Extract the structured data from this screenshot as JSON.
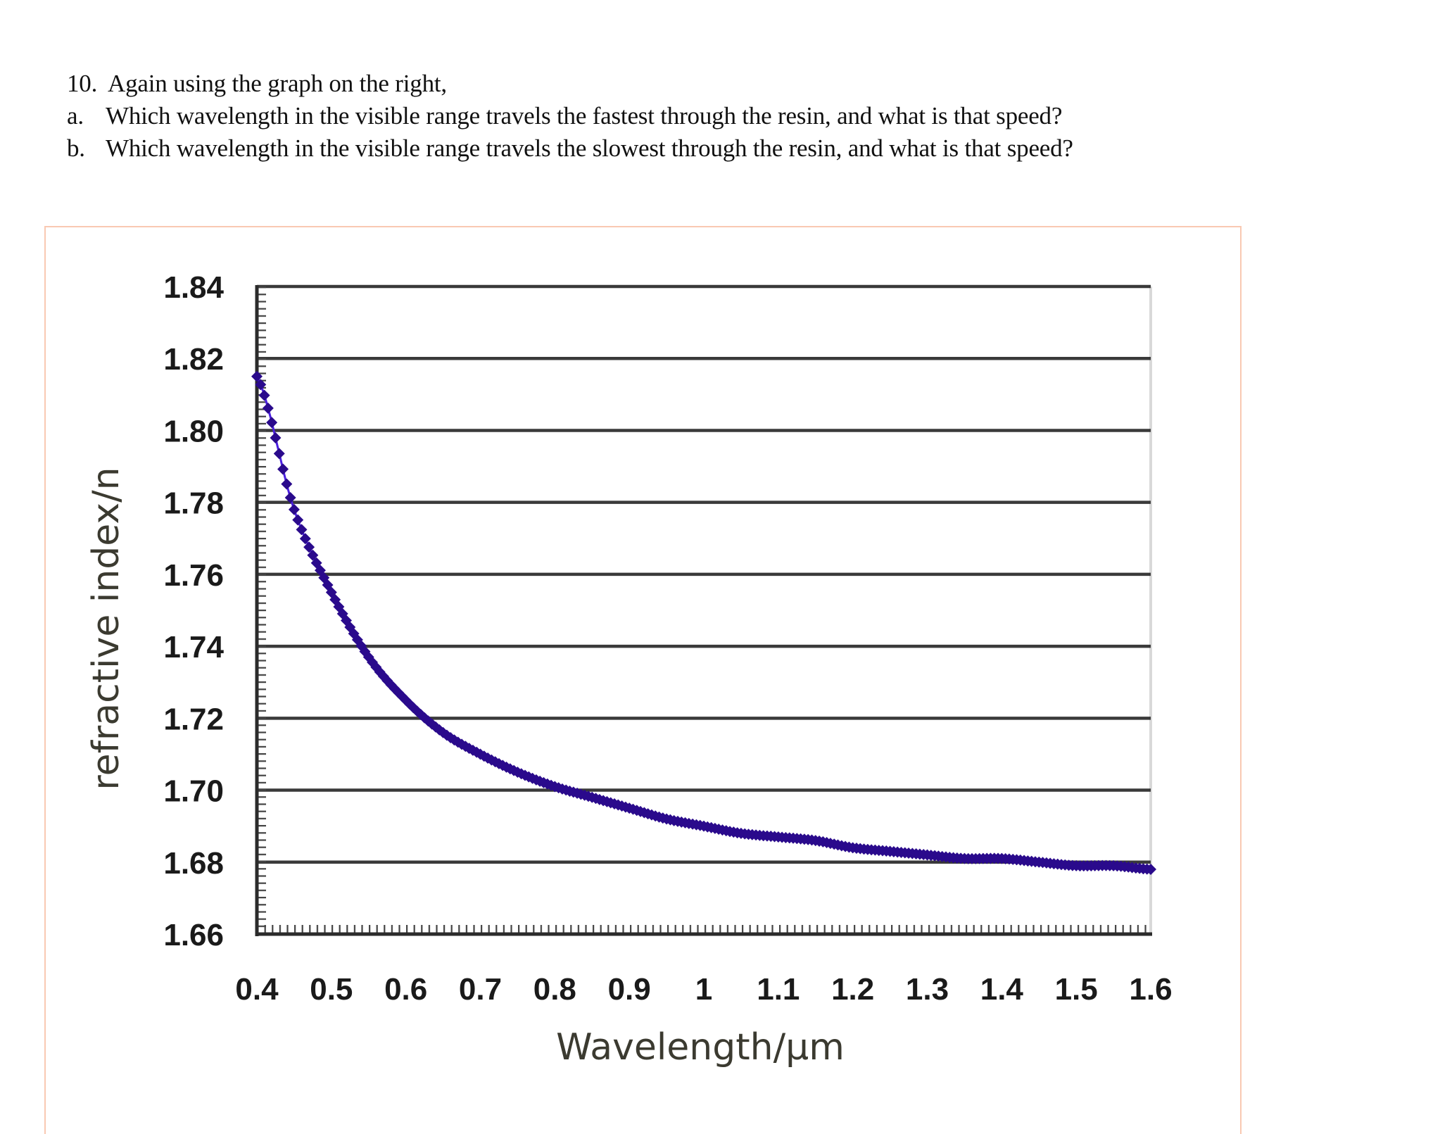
{
  "document": {
    "question": {
      "number": "10.",
      "text": "Again using the graph on the right,",
      "parts": [
        {
          "marker": "a.",
          "text": "Which wavelength in the visible range travels the fastest through the resin, and what is that speed?"
        },
        {
          "marker": "b.",
          "text": "Which wavelength in the visible range travels the slowest through the resin, and what is that speed?"
        }
      ]
    }
  },
  "colors": {
    "frame": "#f9c9b2",
    "series": "#2a0a8c",
    "series_line": "#4b1fe0",
    "gridline": "#3a3a3a",
    "right_border": "#d9d9d9"
  },
  "chart_data": {
    "type": "line",
    "title": "",
    "xlabel": "Wavelength/μm",
    "ylabel": "refractive index/n",
    "xlim": [
      0.4,
      1.6
    ],
    "ylim": [
      1.66,
      1.84
    ],
    "grid": true,
    "legend": null,
    "x_ticks": [
      "0.4",
      "0.5",
      "0.6",
      "0.7",
      "0.8",
      "0.9",
      "1",
      "1.1",
      "1.2",
      "1.3",
      "1.4",
      "1.5",
      "1.6"
    ],
    "y_ticks": [
      "1.84",
      "1.82",
      "1.80",
      "1.78",
      "1.76",
      "1.74",
      "1.72",
      "1.70",
      "1.68",
      "1.66"
    ],
    "series": [
      {
        "name": "refractive index",
        "marker": "diamond",
        "x": [
          0.4,
          0.45,
          0.5,
          0.55,
          0.6,
          0.65,
          0.7,
          0.75,
          0.8,
          0.85,
          0.9,
          0.95,
          1.0,
          1.05,
          1.1,
          1.15,
          1.2,
          1.25,
          1.3,
          1.35,
          1.4,
          1.45,
          1.5,
          1.55,
          1.6
        ],
        "values": [
          1.815,
          1.778,
          1.755,
          1.737,
          1.725,
          1.716,
          1.71,
          1.705,
          1.701,
          1.698,
          1.695,
          1.692,
          1.69,
          1.688,
          1.687,
          1.686,
          1.684,
          1.683,
          1.682,
          1.681,
          1.681,
          1.68,
          1.679,
          1.679,
          1.678
        ]
      }
    ]
  }
}
